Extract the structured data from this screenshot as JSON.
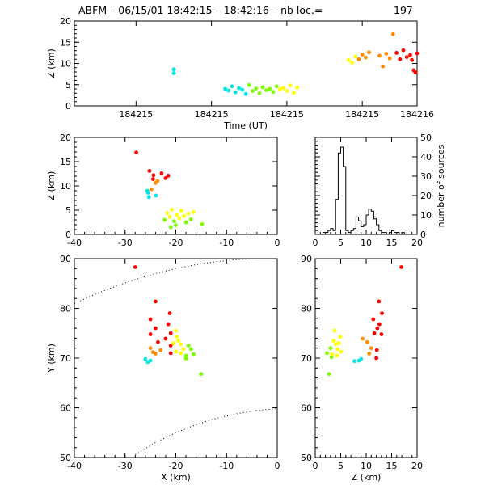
{
  "figure": {
    "title_prefix": "ABFM – 06/15/01 18:42:15 – 18:42:16 – nb loc.=",
    "source_count": "197"
  },
  "chart_data": [
    {
      "id": "time_height",
      "type": "scatter",
      "xlabel": "Time (UT)",
      "ylabel": "Z (km)",
      "xlim": [
        0,
        1
      ],
      "ylim": [
        0,
        20
      ],
      "x_tick_positions": [
        0.18,
        0.4,
        0.62,
        0.84,
        1.0
      ],
      "x_tick_labels": [
        "184215",
        "184215",
        "184215",
        "184215",
        "184216"
      ],
      "y_ticks": [
        0,
        5,
        10,
        15,
        20
      ],
      "color_encoding": "time",
      "colors": [
        "#00e5e5",
        "#7cfc00",
        "#ffff00",
        "#ff8c00",
        "#ff0000"
      ],
      "points": [
        {
          "x": 0.29,
          "y": 8.6
        },
        {
          "x": 0.29,
          "y": 7.7
        },
        {
          "x": 0.44,
          "y": 4.0
        },
        {
          "x": 0.45,
          "y": 3.6
        },
        {
          "x": 0.46,
          "y": 4.6
        },
        {
          "x": 0.47,
          "y": 3.2
        },
        {
          "x": 0.48,
          "y": 4.2
        },
        {
          "x": 0.49,
          "y": 3.8
        },
        {
          "x": 0.5,
          "y": 2.8
        },
        {
          "x": 0.51,
          "y": 4.9
        },
        {
          "x": 0.52,
          "y": 3.5
        },
        {
          "x": 0.53,
          "y": 4.1
        },
        {
          "x": 0.54,
          "y": 3.0
        },
        {
          "x": 0.55,
          "y": 4.4
        },
        {
          "x": 0.56,
          "y": 3.7
        },
        {
          "x": 0.57,
          "y": 4.0
        },
        {
          "x": 0.58,
          "y": 3.3
        },
        {
          "x": 0.59,
          "y": 4.6
        },
        {
          "x": 0.6,
          "y": 3.9
        },
        {
          "x": 0.61,
          "y": 4.2
        },
        {
          "x": 0.62,
          "y": 3.5
        },
        {
          "x": 0.63,
          "y": 4.8
        },
        {
          "x": 0.64,
          "y": 3.1
        },
        {
          "x": 0.65,
          "y": 4.3
        },
        {
          "x": 0.8,
          "y": 10.8
        },
        {
          "x": 0.81,
          "y": 10.2
        },
        {
          "x": 0.82,
          "y": 11.6
        },
        {
          "x": 0.83,
          "y": 11.0
        },
        {
          "x": 0.84,
          "y": 12.1
        },
        {
          "x": 0.85,
          "y": 11.4
        },
        {
          "x": 0.86,
          "y": 12.6
        },
        {
          "x": 0.89,
          "y": 11.8
        },
        {
          "x": 0.9,
          "y": 9.3
        },
        {
          "x": 0.91,
          "y": 12.3
        },
        {
          "x": 0.92,
          "y": 11.2
        },
        {
          "x": 0.93,
          "y": 16.9
        },
        {
          "x": 0.94,
          "y": 12.5
        },
        {
          "x": 0.95,
          "y": 11.0
        },
        {
          "x": 0.96,
          "y": 13.1
        },
        {
          "x": 0.97,
          "y": 11.5
        },
        {
          "x": 0.98,
          "y": 12.0
        },
        {
          "x": 0.99,
          "y": 8.4
        },
        {
          "x": 1.0,
          "y": 12.4
        },
        {
          "x": 0.995,
          "y": 7.9
        },
        {
          "x": 0.985,
          "y": 10.8
        }
      ]
    },
    {
      "id": "x_z",
      "type": "scatter",
      "xlabel": "",
      "ylabel": "Z (km)",
      "xlim": [
        -40,
        0
      ],
      "ylim": [
        0,
        20
      ],
      "x_ticks": [
        -40,
        -30,
        -20,
        -10,
        0
      ],
      "y_ticks": [
        0,
        5,
        10,
        15,
        20
      ],
      "colors": [
        "#00e5e5",
        "#7cfc00",
        "#ffff00",
        "#ff8c00",
        "#ff0000"
      ],
      "points": [
        {
          "x": -25.5,
          "y": 8.6
        },
        {
          "x": -25.3,
          "y": 7.7
        },
        {
          "x": -25.6,
          "y": 9.0
        },
        {
          "x": -22.2,
          "y": 3.0
        },
        {
          "x": -21.7,
          "y": 4.4
        },
        {
          "x": -21.2,
          "y": 3.6
        },
        {
          "x": -20.8,
          "y": 5.1
        },
        {
          "x": -20.3,
          "y": 2.7
        },
        {
          "x": -19.8,
          "y": 4.0
        },
        {
          "x": -19.3,
          "y": 3.3
        },
        {
          "x": -18.9,
          "y": 4.9
        },
        {
          "x": -18.4,
          "y": 3.8
        },
        {
          "x": -18.0,
          "y": 2.5
        },
        {
          "x": -17.5,
          "y": 4.3
        },
        {
          "x": -17.0,
          "y": 3.1
        },
        {
          "x": -16.5,
          "y": 4.6
        },
        {
          "x": -21.0,
          "y": 1.5
        },
        {
          "x": -20.0,
          "y": 1.9
        },
        {
          "x": -14.8,
          "y": 2.1
        },
        {
          "x": -27.8,
          "y": 16.9
        },
        {
          "x": -25.2,
          "y": 13.1
        },
        {
          "x": -24.4,
          "y": 12.2
        },
        {
          "x": -23.6,
          "y": 11.0
        },
        {
          "x": -22.8,
          "y": 12.6
        },
        {
          "x": -22.0,
          "y": 11.6
        },
        {
          "x": -21.5,
          "y": 12.1
        },
        {
          "x": -24.0,
          "y": 10.6
        },
        {
          "x": -24.8,
          "y": 9.3
        },
        {
          "x": -23.9,
          "y": 8.0
        },
        {
          "x": -24.5,
          "y": 11.4
        }
      ]
    },
    {
      "id": "histogram",
      "type": "bar",
      "xlabel": "",
      "ylabel": "number of sources",
      "xlim": [
        0,
        20
      ],
      "ylim": [
        0,
        50
      ],
      "x_ticks": [
        0,
        5,
        10,
        15,
        20
      ],
      "y_ticks": [
        0,
        10,
        20,
        30,
        40,
        50
      ],
      "bin_width": 0.5,
      "bin_edges_start": 0,
      "counts": [
        0,
        0,
        0,
        1,
        1,
        2,
        3,
        2,
        18,
        42,
        45,
        35,
        2,
        1,
        2,
        3,
        9,
        7,
        4,
        5,
        10,
        13,
        12,
        8,
        5,
        2,
        1,
        1,
        0,
        1,
        2,
        1,
        1,
        0,
        1,
        0,
        0,
        0,
        0,
        0
      ]
    },
    {
      "id": "x_y",
      "type": "scatter",
      "xlabel": "X (km)",
      "ylabel": "Y (km)",
      "xlim": [
        -40,
        0
      ],
      "ylim": [
        50,
        90
      ],
      "x_ticks": [
        -40,
        -30,
        -20,
        -10,
        0
      ],
      "y_ticks": [
        50,
        60,
        70,
        80,
        90
      ],
      "colors": [
        "#00e5e5",
        "#7cfc00",
        "#ffff00",
        "#ff8c00",
        "#ff0000"
      ],
      "points": [
        {
          "x": -28.0,
          "y": 88.3
        },
        {
          "x": -26.0,
          "y": 69.8
        },
        {
          "x": -25.5,
          "y": 69.2
        },
        {
          "x": -25.0,
          "y": 69.5
        },
        {
          "x": -24.0,
          "y": 81.4
        },
        {
          "x": -21.2,
          "y": 79.0
        },
        {
          "x": -25.0,
          "y": 77.8
        },
        {
          "x": -24.0,
          "y": 76.0
        },
        {
          "x": -25.0,
          "y": 74.8
        },
        {
          "x": -23.5,
          "y": 73.2
        },
        {
          "x": -21.5,
          "y": 76.8
        },
        {
          "x": -21.0,
          "y": 75.0
        },
        {
          "x": -22.0,
          "y": 73.9
        },
        {
          "x": -21.0,
          "y": 72.5
        },
        {
          "x": -25.0,
          "y": 72.0
        },
        {
          "x": -24.5,
          "y": 71.2
        },
        {
          "x": -24.0,
          "y": 70.9
        },
        {
          "x": -23.0,
          "y": 71.6
        },
        {
          "x": -21.0,
          "y": 71.0
        },
        {
          "x": -20.0,
          "y": 71.3
        },
        {
          "x": -20.0,
          "y": 75.5
        },
        {
          "x": -19.5,
          "y": 73.5
        },
        {
          "x": -19.0,
          "y": 72.8
        },
        {
          "x": -18.5,
          "y": 71.8
        },
        {
          "x": -20.5,
          "y": 73.0
        },
        {
          "x": -19.8,
          "y": 74.3
        },
        {
          "x": -19.0,
          "y": 71.0
        },
        {
          "x": -18.0,
          "y": 70.5
        },
        {
          "x": -17.5,
          "y": 72.5
        },
        {
          "x": -17.0,
          "y": 71.8
        },
        {
          "x": -16.5,
          "y": 70.8
        },
        {
          "x": -18.0,
          "y": 69.9
        },
        {
          "x": -15.0,
          "y": 66.8
        }
      ],
      "range_arcs": [
        {
          "x": [
            -40,
            -36,
            -32,
            -28,
            -24,
            -20,
            -16,
            -12,
            -8,
            -4,
            0
          ],
          "y": [
            81,
            82.8,
            84.4,
            85.8,
            87.0,
            88.0,
            88.8,
            89.4,
            89.8,
            90.0,
            90.0
          ]
        },
        {
          "x": [
            -28,
            -24,
            -20,
            -16,
            -12,
            -8,
            -4,
            0
          ],
          "y": [
            50.6,
            53.0,
            55.0,
            56.6,
            57.9,
            58.8,
            59.5,
            59.8
          ]
        }
      ]
    },
    {
      "id": "z_y",
      "type": "scatter",
      "xlabel": "Z (km)",
      "ylabel": "",
      "xlim": [
        0,
        20
      ],
      "ylim": [
        50,
        90
      ],
      "x_ticks": [
        0,
        5,
        10,
        15,
        20
      ],
      "y_ticks": [
        50,
        60,
        70,
        80,
        90
      ],
      "colors": [
        "#00e5e5",
        "#7cfc00",
        "#ffff00",
        "#ff8c00",
        "#ff0000"
      ],
      "points": [
        {
          "x": 16.9,
          "y": 88.3
        },
        {
          "x": 7.7,
          "y": 69.4
        },
        {
          "x": 8.6,
          "y": 69.5
        },
        {
          "x": 9.0,
          "y": 69.8
        },
        {
          "x": 2.7,
          "y": 66.8
        },
        {
          "x": 2.3,
          "y": 71.0
        },
        {
          "x": 3.2,
          "y": 70.2
        },
        {
          "x": 3.0,
          "y": 72.0
        },
        {
          "x": 3.6,
          "y": 73.5
        },
        {
          "x": 4.0,
          "y": 72.8
        },
        {
          "x": 4.4,
          "y": 71.8
        },
        {
          "x": 4.9,
          "y": 74.3
        },
        {
          "x": 3.8,
          "y": 75.5
        },
        {
          "x": 4.3,
          "y": 70.5
        },
        {
          "x": 5.1,
          "y": 71.3
        },
        {
          "x": 4.6,
          "y": 73.0
        },
        {
          "x": 3.3,
          "y": 70.8
        },
        {
          "x": 10.2,
          "y": 73.2
        },
        {
          "x": 11.0,
          "y": 72.0
        },
        {
          "x": 12.1,
          "y": 71.6
        },
        {
          "x": 10.6,
          "y": 70.9
        },
        {
          "x": 11.6,
          "y": 75.0
        },
        {
          "x": 12.6,
          "y": 76.8
        },
        {
          "x": 11.4,
          "y": 77.8
        },
        {
          "x": 12.2,
          "y": 76.0
        },
        {
          "x": 13.1,
          "y": 79.0
        },
        {
          "x": 12.5,
          "y": 81.4
        },
        {
          "x": 9.3,
          "y": 73.9
        },
        {
          "x": 13.0,
          "y": 74.8
        },
        {
          "x": 12.0,
          "y": 70.0
        }
      ]
    }
  ]
}
